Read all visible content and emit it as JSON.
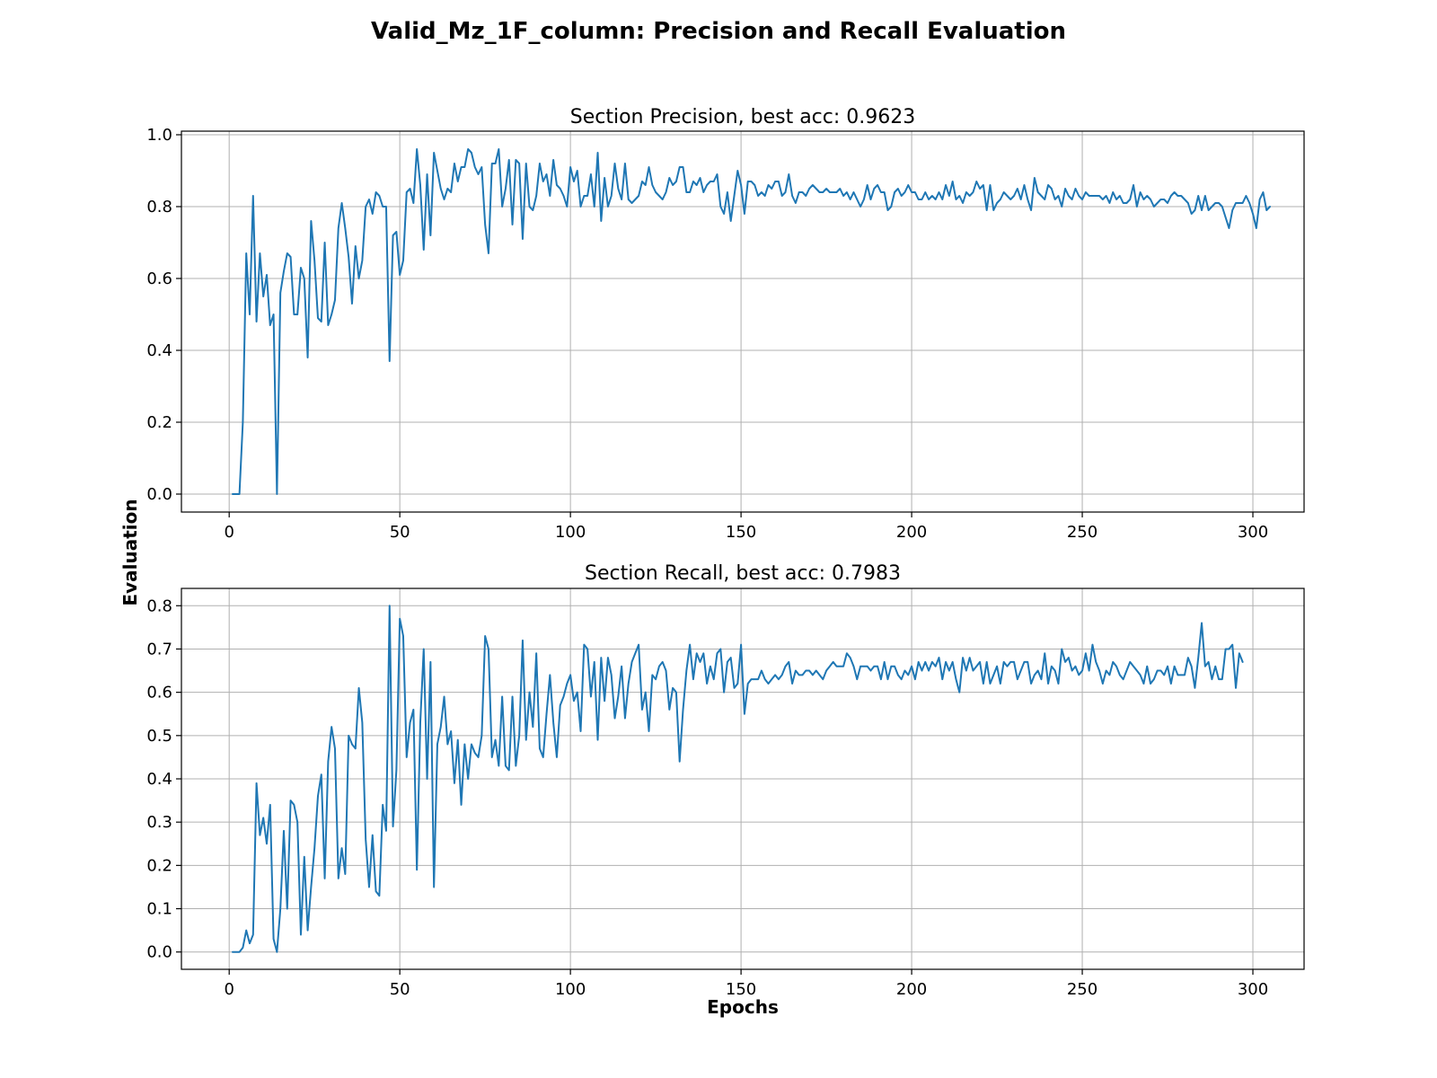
{
  "figure": {
    "title": "Valid_Mz_1F_column:  Precision and Recall Evaluation",
    "ylabel": "Evaluation",
    "xlabel": "Epochs"
  },
  "chart_data": [
    {
      "type": "line",
      "title": "Section Precision, best acc: 0.9623",
      "xlim": [
        -14,
        315
      ],
      "ylim": [
        -0.05,
        1.01
      ],
      "xticks": [
        0,
        50,
        100,
        150,
        200,
        250,
        300
      ],
      "yticks": [
        "0.0",
        "0.2",
        "0.4",
        "0.6",
        "0.8",
        "1.0"
      ],
      "grid": true,
      "line_color": "#1f77b4",
      "series": [
        {
          "x_start": 1,
          "values": [
            0.0,
            0.0,
            0.0,
            0.2,
            0.67,
            0.5,
            0.83,
            0.48,
            0.67,
            0.55,
            0.61,
            0.47,
            0.5,
            0.0,
            0.56,
            0.62,
            0.67,
            0.66,
            0.5,
            0.5,
            0.63,
            0.6,
            0.38,
            0.76,
            0.65,
            0.49,
            0.48,
            0.7,
            0.47,
            0.5,
            0.54,
            0.74,
            0.81,
            0.74,
            0.66,
            0.53,
            0.69,
            0.6,
            0.65,
            0.8,
            0.82,
            0.78,
            0.84,
            0.83,
            0.8,
            0.8,
            0.37,
            0.72,
            0.73,
            0.61,
            0.65,
            0.84,
            0.85,
            0.81,
            0.96,
            0.86,
            0.68,
            0.89,
            0.72,
            0.95,
            0.9,
            0.85,
            0.82,
            0.85,
            0.84,
            0.92,
            0.87,
            0.91,
            0.91,
            0.96,
            0.95,
            0.91,
            0.89,
            0.91,
            0.75,
            0.67,
            0.92,
            0.92,
            0.96,
            0.8,
            0.85,
            0.93,
            0.75,
            0.93,
            0.92,
            0.71,
            0.92,
            0.8,
            0.79,
            0.83,
            0.92,
            0.87,
            0.89,
            0.83,
            0.93,
            0.86,
            0.85,
            0.83,
            0.8,
            0.91,
            0.87,
            0.9,
            0.8,
            0.83,
            0.83,
            0.89,
            0.8,
            0.95,
            0.76,
            0.88,
            0.8,
            0.83,
            0.92,
            0.85,
            0.82,
            0.92,
            0.82,
            0.81,
            0.82,
            0.83,
            0.87,
            0.86,
            0.91,
            0.86,
            0.84,
            0.83,
            0.82,
            0.84,
            0.88,
            0.86,
            0.87,
            0.91,
            0.91,
            0.84,
            0.84,
            0.87,
            0.86,
            0.88,
            0.84,
            0.86,
            0.87,
            0.87,
            0.89,
            0.8,
            0.78,
            0.84,
            0.76,
            0.83,
            0.9,
            0.86,
            0.78,
            0.87,
            0.87,
            0.86,
            0.83,
            0.84,
            0.83,
            0.86,
            0.85,
            0.87,
            0.87,
            0.83,
            0.84,
            0.89,
            0.83,
            0.81,
            0.84,
            0.84,
            0.83,
            0.85,
            0.86,
            0.85,
            0.84,
            0.84,
            0.85,
            0.84,
            0.84,
            0.84,
            0.85,
            0.83,
            0.84,
            0.82,
            0.84,
            0.82,
            0.8,
            0.82,
            0.86,
            0.82,
            0.85,
            0.86,
            0.84,
            0.84,
            0.79,
            0.8,
            0.84,
            0.85,
            0.83,
            0.84,
            0.86,
            0.84,
            0.84,
            0.82,
            0.82,
            0.84,
            0.82,
            0.83,
            0.82,
            0.84,
            0.82,
            0.86,
            0.83,
            0.87,
            0.82,
            0.83,
            0.81,
            0.84,
            0.83,
            0.84,
            0.87,
            0.85,
            0.86,
            0.79,
            0.86,
            0.79,
            0.81,
            0.82,
            0.84,
            0.83,
            0.82,
            0.83,
            0.85,
            0.82,
            0.86,
            0.82,
            0.79,
            0.88,
            0.84,
            0.83,
            0.82,
            0.86,
            0.85,
            0.82,
            0.83,
            0.8,
            0.85,
            0.83,
            0.82,
            0.85,
            0.83,
            0.82,
            0.84,
            0.83,
            0.83,
            0.83,
            0.83,
            0.82,
            0.83,
            0.81,
            0.84,
            0.82,
            0.83,
            0.81,
            0.81,
            0.82,
            0.86,
            0.8,
            0.84,
            0.82,
            0.83,
            0.82,
            0.8,
            0.81,
            0.82,
            0.82,
            0.81,
            0.83,
            0.84,
            0.83,
            0.83,
            0.82,
            0.81,
            0.78,
            0.79,
            0.83,
            0.79,
            0.83,
            0.79,
            0.8,
            0.81,
            0.81,
            0.8,
            0.77,
            0.74,
            0.79,
            0.81,
            0.81,
            0.81,
            0.83,
            0.81,
            0.78,
            0.74,
            0.82,
            0.84,
            0.79,
            0.8
          ]
        }
      ]
    },
    {
      "type": "line",
      "title": "Section Recall, best acc: 0.7983",
      "xlim": [
        -14,
        315
      ],
      "ylim": [
        -0.04,
        0.84
      ],
      "xticks": [
        0,
        50,
        100,
        150,
        200,
        250,
        300
      ],
      "yticks": [
        "0.0",
        "0.1",
        "0.2",
        "0.3",
        "0.4",
        "0.5",
        "0.6",
        "0.7",
        "0.8"
      ],
      "grid": true,
      "line_color": "#1f77b4",
      "series": [
        {
          "x_start": 1,
          "values": [
            0.0,
            0.0,
            0.0,
            0.01,
            0.05,
            0.02,
            0.04,
            0.39,
            0.27,
            0.31,
            0.25,
            0.34,
            0.03,
            0.0,
            0.1,
            0.28,
            0.1,
            0.35,
            0.34,
            0.3,
            0.04,
            0.22,
            0.05,
            0.15,
            0.24,
            0.36,
            0.41,
            0.17,
            0.44,
            0.52,
            0.47,
            0.17,
            0.24,
            0.18,
            0.5,
            0.48,
            0.47,
            0.61,
            0.53,
            0.26,
            0.15,
            0.27,
            0.14,
            0.13,
            0.34,
            0.28,
            0.8,
            0.29,
            0.42,
            0.77,
            0.73,
            0.45,
            0.53,
            0.56,
            0.19,
            0.53,
            0.7,
            0.4,
            0.67,
            0.15,
            0.48,
            0.52,
            0.59,
            0.48,
            0.51,
            0.39,
            0.49,
            0.34,
            0.48,
            0.4,
            0.48,
            0.46,
            0.45,
            0.5,
            0.73,
            0.7,
            0.45,
            0.49,
            0.43,
            0.59,
            0.43,
            0.42,
            0.59,
            0.43,
            0.5,
            0.72,
            0.49,
            0.6,
            0.52,
            0.69,
            0.47,
            0.45,
            0.55,
            0.64,
            0.53,
            0.45,
            0.57,
            0.59,
            0.62,
            0.64,
            0.58,
            0.6,
            0.51,
            0.71,
            0.7,
            0.59,
            0.67,
            0.49,
            0.68,
            0.58,
            0.68,
            0.64,
            0.54,
            0.59,
            0.66,
            0.54,
            0.62,
            0.67,
            0.69,
            0.71,
            0.56,
            0.6,
            0.51,
            0.64,
            0.63,
            0.66,
            0.67,
            0.65,
            0.56,
            0.61,
            0.6,
            0.44,
            0.56,
            0.65,
            0.71,
            0.63,
            0.69,
            0.67,
            0.69,
            0.62,
            0.66,
            0.63,
            0.69,
            0.7,
            0.6,
            0.67,
            0.68,
            0.61,
            0.62,
            0.71,
            0.55,
            0.62,
            0.63,
            0.63,
            0.63,
            0.65,
            0.63,
            0.62,
            0.63,
            0.64,
            0.63,
            0.64,
            0.66,
            0.67,
            0.62,
            0.65,
            0.64,
            0.64,
            0.65,
            0.65,
            0.64,
            0.65,
            0.64,
            0.63,
            0.65,
            0.66,
            0.67,
            0.66,
            0.66,
            0.66,
            0.69,
            0.68,
            0.66,
            0.63,
            0.66,
            0.66,
            0.66,
            0.65,
            0.66,
            0.66,
            0.63,
            0.67,
            0.63,
            0.66,
            0.66,
            0.64,
            0.63,
            0.65,
            0.64,
            0.66,
            0.63,
            0.67,
            0.65,
            0.67,
            0.65,
            0.67,
            0.66,
            0.68,
            0.63,
            0.67,
            0.65,
            0.67,
            0.63,
            0.6,
            0.68,
            0.65,
            0.68,
            0.65,
            0.66,
            0.67,
            0.62,
            0.67,
            0.62,
            0.64,
            0.66,
            0.62,
            0.67,
            0.66,
            0.67,
            0.67,
            0.63,
            0.65,
            0.67,
            0.67,
            0.62,
            0.64,
            0.65,
            0.63,
            0.69,
            0.62,
            0.66,
            0.65,
            0.62,
            0.7,
            0.67,
            0.68,
            0.65,
            0.66,
            0.64,
            0.65,
            0.69,
            0.65,
            0.71,
            0.67,
            0.65,
            0.62,
            0.65,
            0.64,
            0.67,
            0.66,
            0.64,
            0.63,
            0.65,
            0.67,
            0.66,
            0.65,
            0.64,
            0.62,
            0.66,
            0.62,
            0.63,
            0.65,
            0.65,
            0.64,
            0.66,
            0.62,
            0.66,
            0.64,
            0.64,
            0.64,
            0.68,
            0.66,
            0.61,
            0.68,
            0.76,
            0.66,
            0.67,
            0.63,
            0.66,
            0.63,
            0.63,
            0.7,
            0.7,
            0.71,
            0.61,
            0.69,
            0.67
          ]
        }
      ]
    }
  ]
}
